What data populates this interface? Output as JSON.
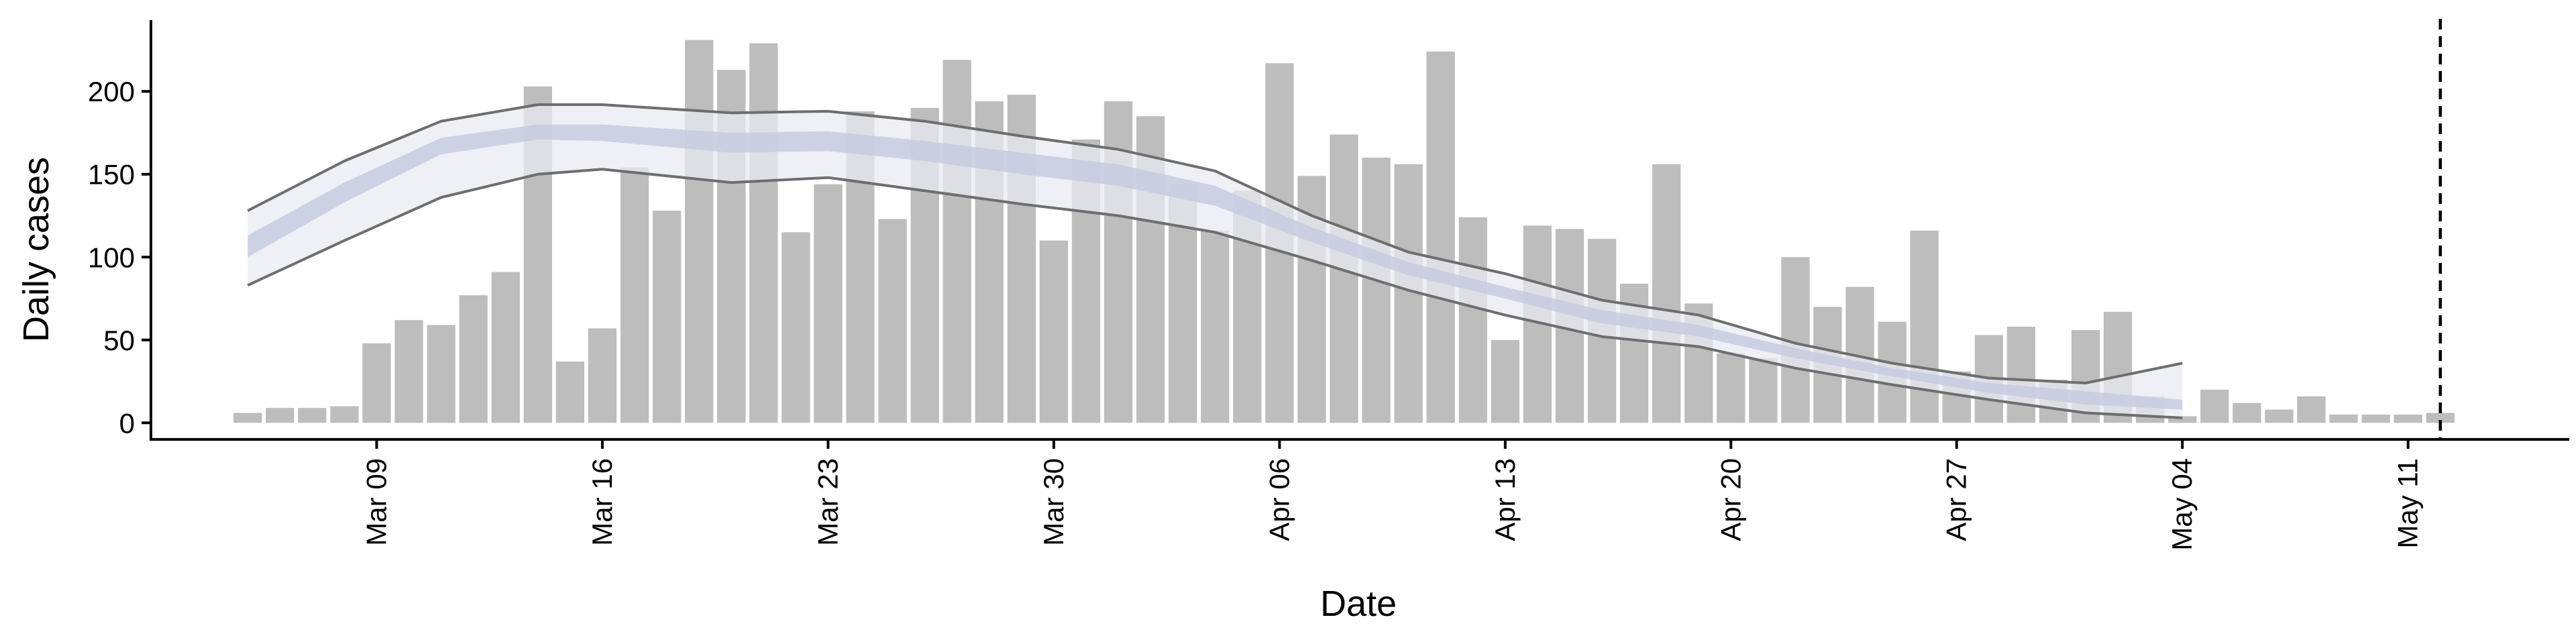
{
  "chart_data": {
    "type": "bar",
    "xlabel": "Date",
    "ylabel": "Daily cases",
    "y_ticks": [
      0,
      50,
      100,
      150,
      200
    ],
    "ylim": [
      -10,
      243
    ],
    "xlim": [
      "2020-03-02",
      "2020-05-16"
    ],
    "x_ticks": [
      {
        "date": "2020-03-09",
        "label": "Mar 09"
      },
      {
        "date": "2020-03-16",
        "label": "Mar 16"
      },
      {
        "date": "2020-03-23",
        "label": "Mar 23"
      },
      {
        "date": "2020-03-30",
        "label": "Mar 30"
      },
      {
        "date": "2020-04-06",
        "label": "Apr 06"
      },
      {
        "date": "2020-04-13",
        "label": "Apr 13"
      },
      {
        "date": "2020-04-20",
        "label": "Apr 20"
      },
      {
        "date": "2020-04-27",
        "label": "Apr 27"
      },
      {
        "date": "2020-05-04",
        "label": "May 04"
      },
      {
        "date": "2020-05-11",
        "label": "May 11"
      }
    ],
    "grid": false,
    "legend": "none",
    "colors": {
      "bars": "#bdbdbd",
      "outer_band": "#e9ebf3",
      "inner_band": "#c3cadf",
      "band_lines": "#6e6e6e",
      "vline": "#000000"
    },
    "series": [
      {
        "kind": "bar",
        "x": [
          "2020-03-05",
          "2020-03-06",
          "2020-03-07",
          "2020-03-08",
          "2020-03-09",
          "2020-03-10",
          "2020-03-11",
          "2020-03-12",
          "2020-03-13",
          "2020-03-14",
          "2020-03-15",
          "2020-03-16",
          "2020-03-17",
          "2020-03-18",
          "2020-03-19",
          "2020-03-20",
          "2020-03-21",
          "2020-03-22",
          "2020-03-23",
          "2020-03-24",
          "2020-03-25",
          "2020-03-26",
          "2020-03-27",
          "2020-03-28",
          "2020-03-29",
          "2020-03-30",
          "2020-03-31",
          "2020-04-01",
          "2020-04-02",
          "2020-04-03",
          "2020-04-04",
          "2020-04-05",
          "2020-04-06",
          "2020-04-07",
          "2020-04-08",
          "2020-04-09",
          "2020-04-10",
          "2020-04-11",
          "2020-04-12",
          "2020-04-13",
          "2020-04-14",
          "2020-04-15",
          "2020-04-16",
          "2020-04-17",
          "2020-04-18",
          "2020-04-19",
          "2020-04-20",
          "2020-04-21",
          "2020-04-22",
          "2020-04-23",
          "2020-04-24",
          "2020-04-25",
          "2020-04-26",
          "2020-04-27",
          "2020-04-28",
          "2020-04-29",
          "2020-04-30",
          "2020-05-01",
          "2020-05-02",
          "2020-05-03",
          "2020-05-04",
          "2020-05-05",
          "2020-05-06",
          "2020-05-07",
          "2020-05-08",
          "2020-05-09",
          "2020-05-10",
          "2020-05-11",
          "2020-05-12"
        ],
        "values": [
          6,
          9,
          9,
          10,
          48,
          62,
          59,
          77,
          91,
          203,
          37,
          57,
          154,
          128,
          231,
          213,
          229,
          115,
          144,
          188,
          123,
          190,
          219,
          194,
          198,
          110,
          171,
          194,
          185,
          144,
          116,
          140,
          217,
          149,
          174,
          160,
          156,
          224,
          124,
          50,
          119,
          117,
          111,
          84,
          156,
          72,
          42,
          39,
          100,
          70,
          82,
          61,
          116,
          31,
          53,
          58,
          26,
          56,
          67,
          16,
          4,
          20,
          12,
          8,
          16,
          5,
          5,
          5,
          6
        ]
      },
      {
        "kind": "band",
        "x": [
          "2020-03-05",
          "2020-03-08",
          "2020-03-11",
          "2020-03-14",
          "2020-03-16",
          "2020-03-20",
          "2020-03-23",
          "2020-03-26",
          "2020-03-29",
          "2020-04-01",
          "2020-04-04",
          "2020-04-07",
          "2020-04-10",
          "2020-04-13",
          "2020-04-16",
          "2020-04-19",
          "2020-04-22",
          "2020-04-25",
          "2020-04-28",
          "2020-05-01",
          "2020-05-04"
        ],
        "lower": [
          83,
          110,
          136,
          150,
          153,
          145,
          148,
          140,
          132,
          125,
          115,
          98,
          80,
          65,
          52,
          46,
          33,
          23,
          14,
          6,
          3
        ],
        "upper": [
          128,
          158,
          182,
          192,
          192,
          187,
          188,
          182,
          173,
          165,
          152,
          125,
          103,
          90,
          74,
          65,
          48,
          36,
          27,
          24,
          36
        ],
        "inner_lower": [
          100,
          133,
          162,
          171,
          170,
          163,
          164,
          158,
          150,
          143,
          131,
          109,
          89,
          75,
          60,
          52,
          39,
          28,
          18,
          11,
          8
        ],
        "inner_upper": [
          113,
          145,
          172,
          180,
          180,
          175,
          176,
          170,
          163,
          156,
          143,
          118,
          97,
          82,
          68,
          59,
          45,
          33,
          24,
          19,
          14
        ]
      },
      {
        "kind": "vline",
        "x": "2020-05-12"
      }
    ]
  }
}
